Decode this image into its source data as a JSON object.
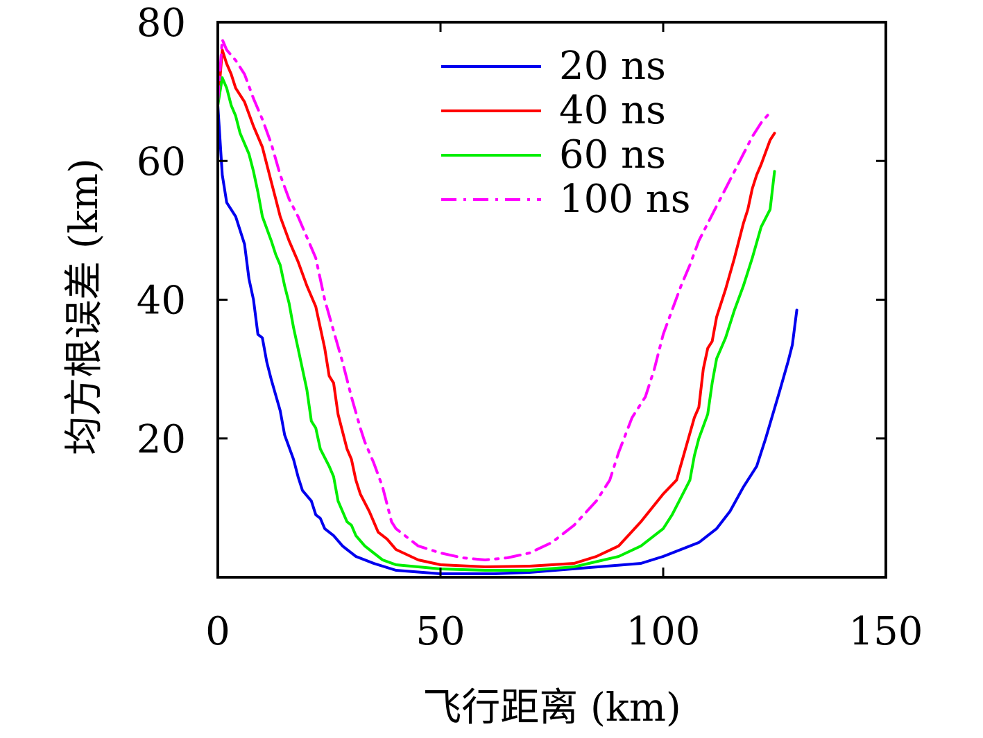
{
  "chart_data": {
    "type": "line",
    "xlabel": "飞行距离 (km)",
    "ylabel": "均方根误差 (km)",
    "xlim": [
      0,
      150
    ],
    "ylim": [
      0,
      80
    ],
    "x_ticks": [
      0,
      50,
      100,
      150
    ],
    "y_ticks": [
      20,
      40,
      60,
      80
    ],
    "x_tick_labels": [
      "0",
      "50",
      "100",
      "150"
    ],
    "y_tick_labels": [
      "20",
      "40",
      "60",
      "80"
    ],
    "grid": false,
    "legend_position": "top-center",
    "series": [
      {
        "name": "20 ns",
        "color": "#0000ee",
        "dash": "solid",
        "points": [
          [
            0,
            68
          ],
          [
            1,
            58
          ],
          [
            2,
            54
          ],
          [
            4,
            52
          ],
          [
            6,
            48
          ],
          [
            7,
            43
          ],
          [
            8,
            40
          ],
          [
            9,
            35
          ],
          [
            10,
            34.5
          ],
          [
            11,
            31
          ],
          [
            12,
            28.5
          ],
          [
            14,
            24
          ],
          [
            15,
            20.5
          ],
          [
            17,
            17
          ],
          [
            18,
            14.5
          ],
          [
            19,
            12.5
          ],
          [
            21,
            11
          ],
          [
            22,
            9
          ],
          [
            23,
            8.5
          ],
          [
            24,
            7
          ],
          [
            26,
            6
          ],
          [
            28,
            4.5
          ],
          [
            29,
            4
          ],
          [
            31,
            3
          ],
          [
            33,
            2.5
          ],
          [
            35,
            2
          ],
          [
            40,
            1
          ],
          [
            50,
            0.5
          ],
          [
            62,
            0.5
          ],
          [
            70,
            0.7
          ],
          [
            95,
            2
          ],
          [
            100,
            3
          ],
          [
            108,
            5
          ],
          [
            112,
            7
          ],
          [
            115,
            9.5
          ],
          [
            118,
            13
          ],
          [
            121,
            16
          ],
          [
            123,
            20
          ],
          [
            126,
            26.5
          ],
          [
            128,
            31
          ],
          [
            129,
            33.5
          ],
          [
            130,
            38.5
          ]
        ]
      },
      {
        "name": "40 ns",
        "color": "#ff0000",
        "dash": "solid",
        "points": [
          [
            0,
            68
          ],
          [
            1,
            76
          ],
          [
            2,
            74
          ],
          [
            3,
            72.5
          ],
          [
            4,
            70.5
          ],
          [
            6,
            68.5
          ],
          [
            8,
            65
          ],
          [
            10,
            62
          ],
          [
            12,
            57
          ],
          [
            13,
            54.5
          ],
          [
            14,
            52
          ],
          [
            16,
            48.5
          ],
          [
            18,
            45.5
          ],
          [
            20,
            42
          ],
          [
            22,
            39
          ],
          [
            24,
            33
          ],
          [
            25,
            29
          ],
          [
            26,
            28
          ],
          [
            27,
            23.5
          ],
          [
            29,
            18.5
          ],
          [
            30,
            17
          ],
          [
            31,
            14
          ],
          [
            32,
            12
          ],
          [
            34,
            9.5
          ],
          [
            36,
            6.5
          ],
          [
            38,
            5.5
          ],
          [
            40,
            4
          ],
          [
            45,
            2.5
          ],
          [
            50,
            1.8
          ],
          [
            60,
            1.5
          ],
          [
            70,
            1.6
          ],
          [
            80,
            2
          ],
          [
            85,
            3
          ],
          [
            90,
            4.5
          ],
          [
            95,
            8
          ],
          [
            100,
            12
          ],
          [
            103,
            14
          ],
          [
            105,
            18.5
          ],
          [
            107,
            23
          ],
          [
            108,
            24.5
          ],
          [
            109,
            30
          ],
          [
            110,
            33
          ],
          [
            111,
            34
          ],
          [
            112,
            37.5
          ],
          [
            114,
            41.5
          ],
          [
            116,
            46
          ],
          [
            118,
            51
          ],
          [
            119,
            53
          ],
          [
            120,
            56
          ],
          [
            121,
            58
          ],
          [
            122,
            59.5
          ],
          [
            124,
            63
          ],
          [
            125,
            64
          ]
        ]
      },
      {
        "name": "60 ns",
        "color": "#00ee00",
        "dash": "solid",
        "points": [
          [
            0,
            68
          ],
          [
            1,
            72
          ],
          [
            2,
            70.5
          ],
          [
            3,
            68
          ],
          [
            4,
            66.5
          ],
          [
            5,
            64
          ],
          [
            7,
            61
          ],
          [
            8,
            58.5
          ],
          [
            9,
            55.5
          ],
          [
            10,
            52
          ],
          [
            12,
            48.5
          ],
          [
            13,
            46.5
          ],
          [
            14,
            45
          ],
          [
            15,
            42
          ],
          [
            16,
            39.5
          ],
          [
            17,
            36
          ],
          [
            18,
            33
          ],
          [
            19,
            30
          ],
          [
            20,
            27
          ],
          [
            21,
            22.5
          ],
          [
            22,
            21.5
          ],
          [
            23,
            18.5
          ],
          [
            25,
            16
          ],
          [
            26,
            14.5
          ],
          [
            27,
            11
          ],
          [
            29,
            8
          ],
          [
            30,
            7.5
          ],
          [
            31,
            6
          ],
          [
            33,
            4.5
          ],
          [
            35,
            3.5
          ],
          [
            37,
            2.5
          ],
          [
            40,
            1.8
          ],
          [
            50,
            1.2
          ],
          [
            60,
            1
          ],
          [
            70,
            1
          ],
          [
            80,
            1.5
          ],
          [
            90,
            3
          ],
          [
            95,
            4.5
          ],
          [
            100,
            7
          ],
          [
            102,
            9
          ],
          [
            104,
            11.5
          ],
          [
            106,
            14
          ],
          [
            107,
            17.5
          ],
          [
            108,
            20
          ],
          [
            110,
            23.5
          ],
          [
            111,
            28
          ],
          [
            112,
            31.5
          ],
          [
            114,
            34.5
          ],
          [
            116,
            38.5
          ],
          [
            118,
            42
          ],
          [
            120,
            46
          ],
          [
            122,
            50.5
          ],
          [
            124,
            53
          ],
          [
            125,
            58.5
          ]
        ]
      },
      {
        "name": "100 ns",
        "color": "#ff00ff",
        "dash": "dashdot",
        "points": [
          [
            0,
            68.5
          ],
          [
            1,
            77.5
          ],
          [
            2,
            76
          ],
          [
            4,
            74.5
          ],
          [
            6,
            72.5
          ],
          [
            8,
            69
          ],
          [
            10,
            66
          ],
          [
            12,
            62.5
          ],
          [
            14,
            58
          ],
          [
            16,
            54.5
          ],
          [
            18,
            52
          ],
          [
            20,
            49
          ],
          [
            22,
            46
          ],
          [
            24,
            40
          ],
          [
            26,
            35.5
          ],
          [
            28,
            31
          ],
          [
            30,
            26
          ],
          [
            32,
            21.5
          ],
          [
            33,
            19.5
          ],
          [
            35,
            16.5
          ],
          [
            37,
            13
          ],
          [
            38,
            10.5
          ],
          [
            39,
            8
          ],
          [
            40,
            7
          ],
          [
            45,
            4.5
          ],
          [
            50,
            3.5
          ],
          [
            55,
            2.8
          ],
          [
            60,
            2.5
          ],
          [
            65,
            2.8
          ],
          [
            70,
            3.5
          ],
          [
            75,
            5
          ],
          [
            80,
            7.5
          ],
          [
            85,
            11
          ],
          [
            88,
            14
          ],
          [
            90,
            18
          ],
          [
            93,
            23
          ],
          [
            96,
            26
          ],
          [
            98,
            30
          ],
          [
            100,
            35
          ],
          [
            102,
            38.5
          ],
          [
            104,
            42
          ],
          [
            106,
            45
          ],
          [
            108,
            48.5
          ],
          [
            110,
            51
          ],
          [
            112,
            53.5
          ],
          [
            114,
            56
          ],
          [
            116,
            58.5
          ],
          [
            118,
            61
          ],
          [
            120,
            63.5
          ],
          [
            122,
            65.5
          ],
          [
            124,
            67
          ]
        ]
      }
    ]
  }
}
